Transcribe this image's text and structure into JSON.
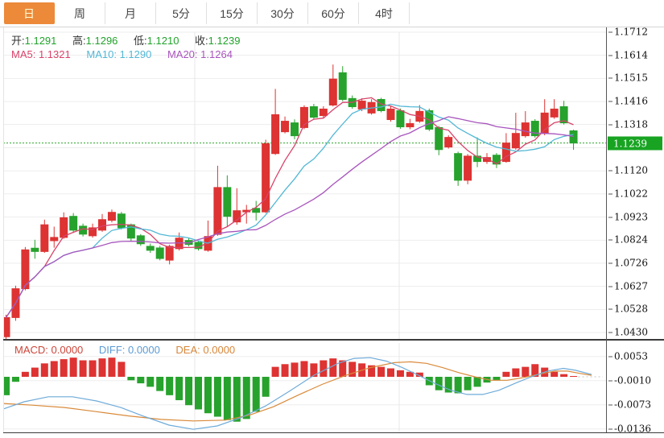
{
  "tabs": {
    "items": [
      {
        "label": "日",
        "active": true
      },
      {
        "label": "周",
        "active": false
      },
      {
        "label": "月",
        "active": false
      },
      {
        "label": "5分",
        "active": false
      },
      {
        "label": "15分",
        "active": false
      },
      {
        "label": "30分",
        "active": false
      },
      {
        "label": "60分",
        "active": false
      },
      {
        "label": "4时",
        "active": false
      }
    ],
    "active_bg": "#ec8a3a",
    "active_text": "#ffffd9"
  },
  "legend": {
    "items": [
      {
        "label": "开:",
        "value": "1.1291"
      },
      {
        "label": "高:",
        "value": "1.1296"
      },
      {
        "label": "低:",
        "value": "1.1210"
      },
      {
        "label": "收:",
        "value": "1.1239"
      }
    ],
    "value_color": "#21a32b"
  },
  "ma_legend": {
    "items": [
      {
        "label": "MA5:",
        "value": "1.1321",
        "color": "#d8436a"
      },
      {
        "label": "MA10:",
        "value": "1.1290",
        "color": "#52b7d5"
      },
      {
        "label": "MA20:",
        "value": "1.1264",
        "color": "#a855bd"
      }
    ]
  },
  "macd_legend": {
    "items": [
      {
        "label": "MACD:",
        "value": "0.0000",
        "color": "#cb463a"
      },
      {
        "label": "DIFF:",
        "value": "0.0000",
        "color": "#5b9bd5"
      },
      {
        "label": "DEA:",
        "value": "0.0000",
        "color": "#d8873a"
      }
    ]
  },
  "price_axis": {
    "labels": [
      "1.1712",
      "1.1614",
      "1.1515",
      "1.1416",
      "1.1318",
      "1.1219",
      "1.1120",
      "1.1022",
      "1.0923",
      "1.0824",
      "1.0726",
      "1.0627",
      "1.0528",
      "1.0430"
    ],
    "current": {
      "text": "1.1239",
      "color": "#18a422"
    }
  },
  "macd_axis": {
    "labels": [
      "0.0053",
      "-0.0010",
      "-0.0073",
      "-0.0136"
    ]
  },
  "chart_data": {
    "type": "candlestick",
    "title": "Daily candlestick chart with MA5/MA10/MA20 and MACD sub-panel",
    "legend_position": "top-left",
    "grid": true,
    "price_range": {
      "top": 1.1712,
      "bottom": 1.043
    },
    "colors": {
      "up": "#dd3332",
      "down": "#27a22d",
      "ma5": "#d8436a",
      "ma10": "#52b7d5",
      "ma20": "#a855bd",
      "diff": "#6fabd9",
      "dea": "#d98a3a",
      "current_line": "#2ba52b"
    },
    "current_price": 1.1239,
    "candles_ohlc": [
      [
        1.0412,
        1.0506,
        1.0398,
        1.0494
      ],
      [
        1.0494,
        1.063,
        1.048,
        1.0617
      ],
      [
        1.0617,
        1.0795,
        1.061,
        1.0783
      ],
      [
        1.079,
        1.0826,
        1.0745,
        1.0776
      ],
      [
        1.0776,
        1.0912,
        1.077,
        1.089
      ],
      [
        1.0822,
        1.0882,
        1.0792,
        1.0836
      ],
      [
        1.0836,
        1.0943,
        1.083,
        1.092
      ],
      [
        1.0926,
        1.094,
        1.0855,
        1.0867
      ],
      [
        1.0884,
        1.0895,
        1.084,
        1.085
      ],
      [
        1.0843,
        1.0895,
        1.0835,
        1.0877
      ],
      [
        1.0867,
        1.0936,
        1.086,
        1.0912
      ],
      [
        1.0909,
        1.0955,
        1.09,
        1.0943
      ],
      [
        1.0936,
        1.0945,
        1.087,
        1.0877
      ],
      [
        1.089,
        1.0895,
        1.082,
        1.0833
      ],
      [
        1.0843,
        1.085,
        1.08,
        1.0809
      ],
      [
        1.0798,
        1.081,
        1.077,
        1.0781
      ],
      [
        1.0791,
        1.08,
        1.0738,
        1.0746
      ],
      [
        1.0739,
        1.0805,
        1.0721,
        1.0798
      ],
      [
        1.0788,
        1.0857,
        1.078,
        1.0833
      ],
      [
        1.0823,
        1.0835,
        1.0798,
        1.0806
      ],
      [
        1.0815,
        1.0822,
        1.078,
        1.0788
      ],
      [
        1.0781,
        1.0908,
        1.0775,
        1.084
      ],
      [
        1.0849,
        1.1142,
        1.0843,
        1.1049
      ],
      [
        1.1049,
        1.1101,
        1.0884,
        1.0926
      ],
      [
        1.0902,
        1.1046,
        1.089,
        1.095
      ],
      [
        1.0945,
        1.0975,
        1.0895,
        1.0952
      ],
      [
        1.096,
        1.0992,
        1.0908,
        1.0943
      ],
      [
        1.0945,
        1.1253,
        1.094,
        1.1236
      ],
      [
        1.1194,
        1.147,
        1.1188,
        1.136
      ],
      [
        1.1287,
        1.1352,
        1.128,
        1.1332
      ],
      [
        1.1325,
        1.134,
        1.1255,
        1.127
      ],
      [
        1.1305,
        1.14,
        1.1298,
        1.1391
      ],
      [
        1.1394,
        1.1406,
        1.134,
        1.1349
      ],
      [
        1.1356,
        1.1396,
        1.1348,
        1.1384
      ],
      [
        1.1401,
        1.1574,
        1.1395,
        1.1512
      ],
      [
        1.1539,
        1.1567,
        1.1418,
        1.1425
      ],
      [
        1.1429,
        1.1442,
        1.1385,
        1.1394
      ],
      [
        1.1384,
        1.143,
        1.1375,
        1.1418
      ],
      [
        1.1367,
        1.1426,
        1.136,
        1.1412
      ],
      [
        1.1425,
        1.1432,
        1.137,
        1.1377
      ],
      [
        1.1339,
        1.1396,
        1.133,
        1.1384
      ],
      [
        1.1377,
        1.1386,
        1.13,
        1.1308
      ],
      [
        1.1308,
        1.1342,
        1.1298,
        1.1322
      ],
      [
        1.1332,
        1.1401,
        1.1325,
        1.1374
      ],
      [
        1.1377,
        1.1386,
        1.129,
        1.1298
      ],
      [
        1.1305,
        1.1312,
        1.1187,
        1.1211
      ],
      [
        1.1222,
        1.1272,
        1.1215,
        1.1263
      ],
      [
        1.1194,
        1.1202,
        1.1056,
        1.108
      ],
      [
        1.108,
        1.1192,
        1.1063,
        1.1183
      ],
      [
        1.1183,
        1.1263,
        1.1136,
        1.116
      ],
      [
        1.116,
        1.1196,
        1.115,
        1.1177
      ],
      [
        1.1187,
        1.1196,
        1.1132,
        1.1149
      ],
      [
        1.116,
        1.1281,
        1.1155,
        1.1239
      ],
      [
        1.1218,
        1.1368,
        1.121,
        1.128
      ],
      [
        1.127,
        1.1375,
        1.1262,
        1.1325
      ],
      [
        1.1332,
        1.1341,
        1.1262,
        1.127
      ],
      [
        1.128,
        1.1426,
        1.1272,
        1.1367
      ],
      [
        1.135,
        1.1426,
        1.1342,
        1.1384
      ],
      [
        1.1394,
        1.1419,
        1.1318,
        1.1325
      ],
      [
        1.1291,
        1.1296,
        1.121,
        1.1239
      ]
    ],
    "ma_windows": [
      5,
      10,
      20
    ],
    "macd_hist": [
      -0.0048,
      -0.0013,
      0.0013,
      0.0024,
      0.0035,
      0.0041,
      0.0046,
      0.005,
      0.0043,
      0.0043,
      0.0048,
      0.005,
      0.0039,
      -0.0009,
      -0.0017,
      -0.0026,
      -0.0037,
      -0.0048,
      -0.0061,
      -0.0074,
      -0.0085,
      -0.0095,
      -0.0104,
      -0.0113,
      -0.0117,
      -0.011,
      -0.0091,
      -0.0052,
      0.0026,
      0.0033,
      0.0037,
      0.0041,
      0.0035,
      0.0043,
      0.0048,
      0.0043,
      0.0039,
      0.0035,
      0.003,
      0.0026,
      0.0022,
      0.0017,
      0.0013,
      0.0011,
      -0.0022,
      -0.0035,
      -0.0041,
      -0.0043,
      -0.0035,
      -0.0026,
      -0.0015,
      -0.0009,
      0.0013,
      0.0022,
      0.0026,
      0.0033,
      0.0024,
      0.0013,
      0.0007,
      0.0001
    ],
    "diff_line": [
      [
        0,
        -0.0087
      ],
      [
        30,
        -0.0065
      ],
      [
        60,
        -0.0052
      ],
      [
        90,
        -0.0052
      ],
      [
        120,
        -0.0063
      ],
      [
        150,
        -0.008
      ],
      [
        180,
        -0.0104
      ],
      [
        210,
        -0.0126
      ],
      [
        240,
        -0.0137
      ],
      [
        270,
        -0.0128
      ],
      [
        300,
        -0.0106
      ],
      [
        330,
        -0.0076
      ],
      [
        360,
        -0.0037
      ],
      [
        390,
        0.0004
      ],
      [
        420,
        0.0035
      ],
      [
        440,
        0.0048
      ],
      [
        460,
        0.005
      ],
      [
        480,
        0.0041
      ],
      [
        500,
        0.0024
      ],
      [
        520,
        0.0004
      ],
      [
        540,
        -0.0017
      ],
      [
        560,
        -0.0035
      ],
      [
        580,
        -0.0046
      ],
      [
        600,
        -0.0046
      ],
      [
        620,
        -0.0035
      ],
      [
        640,
        -0.0017
      ],
      [
        660,
        0.0
      ],
      [
        680,
        0.0015
      ],
      [
        700,
        0.0022
      ],
      [
        715,
        0.0017
      ],
      [
        735,
        0.0006
      ]
    ],
    "dea_line": [
      [
        0,
        -0.0069
      ],
      [
        40,
        -0.0074
      ],
      [
        80,
        -0.008
      ],
      [
        120,
        -0.0091
      ],
      [
        160,
        -0.0102
      ],
      [
        200,
        -0.0111
      ],
      [
        240,
        -0.0115
      ],
      [
        280,
        -0.0113
      ],
      [
        310,
        -0.01
      ],
      [
        340,
        -0.0078
      ],
      [
        370,
        -0.0048
      ],
      [
        400,
        -0.002
      ],
      [
        430,
        0.0004
      ],
      [
        460,
        0.0024
      ],
      [
        490,
        0.0037
      ],
      [
        510,
        0.0039
      ],
      [
        530,
        0.0035
      ],
      [
        550,
        0.0024
      ],
      [
        570,
        0.0011
      ],
      [
        590,
        0.0
      ],
      [
        610,
        -0.0009
      ],
      [
        630,
        -0.0009
      ],
      [
        650,
        -0.0002
      ],
      [
        670,
        0.0007
      ],
      [
        690,
        0.0015
      ],
      [
        705,
        0.0015
      ],
      [
        720,
        0.0009
      ],
      [
        735,
        0.0004
      ]
    ]
  }
}
